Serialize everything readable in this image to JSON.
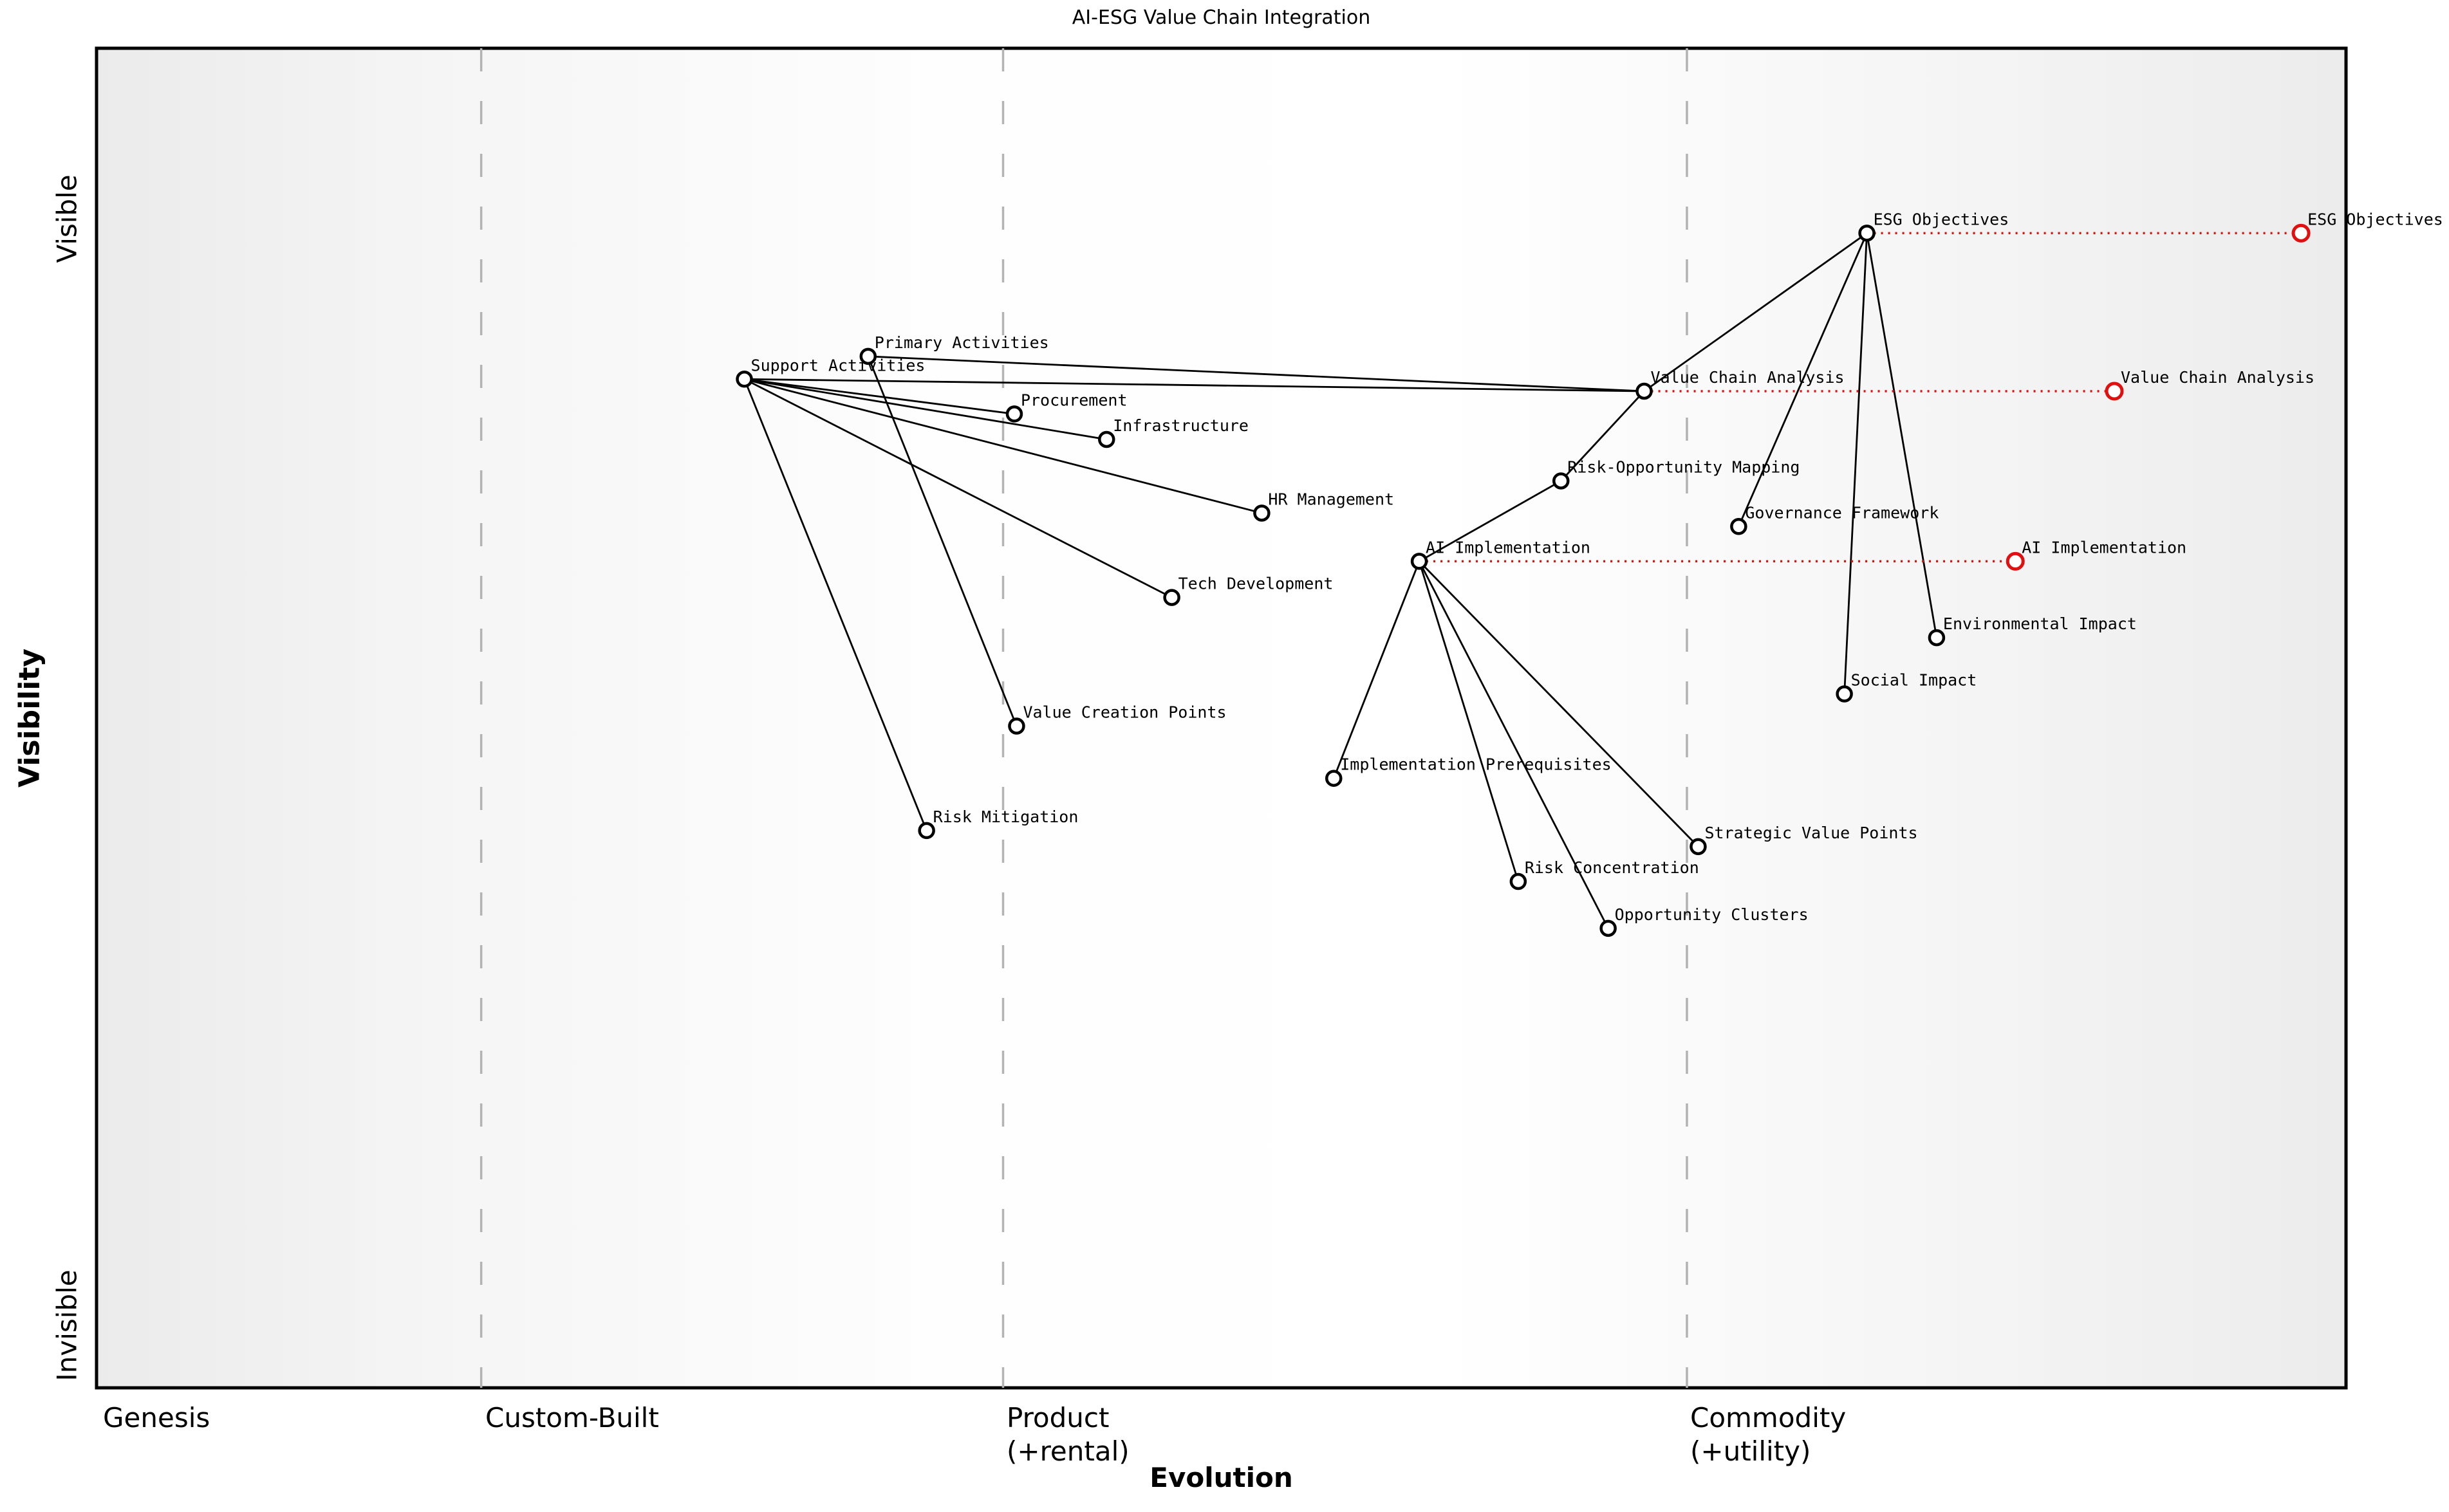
{
  "title": "AI-ESG Value Chain Integration",
  "chart_data": {
    "type": "wardley_map",
    "title": "AI-ESG Value Chain Integration",
    "x_axis": {
      "label": "Evolution",
      "sections": [
        "Genesis",
        "Custom-Built",
        "Product\n(+rental)",
        "Commodity\n(+utility)"
      ],
      "boundaries": [
        0.171,
        0.403,
        0.707
      ],
      "range": [
        0,
        1
      ]
    },
    "y_axis": {
      "label": "Visibility",
      "top": "Visible",
      "bottom": "Invisible",
      "range": [
        0,
        1
      ]
    },
    "grid": "dashed-stage-dividers",
    "colors": {
      "node": "#000000",
      "node_fill": "#ffffff",
      "evolved": "#e01010",
      "edge": "#000000",
      "divider": "#b3b3b3",
      "label": "#000000"
    },
    "nodes": [
      {
        "id": "esg-objectives",
        "label": "ESG Objectives",
        "x": 0.787,
        "y": 0.138
      },
      {
        "id": "value-chain-analysis",
        "label": "Value Chain Analysis",
        "x": 0.688,
        "y": 0.256
      },
      {
        "id": "primary-activities",
        "label": "Primary Activities",
        "x": 0.343,
        "y": 0.23
      },
      {
        "id": "support-activities",
        "label": "Support Activities",
        "x": 0.288,
        "y": 0.247
      },
      {
        "id": "procurement",
        "label": "Procurement",
        "x": 0.408,
        "y": 0.273
      },
      {
        "id": "infrastructure",
        "label": "Infrastructure",
        "x": 0.449,
        "y": 0.292
      },
      {
        "id": "risk-opportunity-mapping",
        "label": "Risk-Opportunity Mapping",
        "x": 0.651,
        "y": 0.323
      },
      {
        "id": "governance-framework",
        "label": "Governance Framework",
        "x": 0.73,
        "y": 0.357
      },
      {
        "id": "hr-management",
        "label": "HR Management",
        "x": 0.518,
        "y": 0.347
      },
      {
        "id": "ai-implementation",
        "label": "AI Implementation",
        "x": 0.588,
        "y": 0.383
      },
      {
        "id": "tech-development",
        "label": "Tech Development",
        "x": 0.478,
        "y": 0.41
      },
      {
        "id": "environmental-impact",
        "label": "Environmental Impact",
        "x": 0.818,
        "y": 0.44
      },
      {
        "id": "social-impact",
        "label": "Social Impact",
        "x": 0.777,
        "y": 0.482
      },
      {
        "id": "value-creation-points",
        "label": "Value Creation Points",
        "x": 0.409,
        "y": 0.506
      },
      {
        "id": "implementation-prerequisites",
        "label": "Implementation Prerequisites",
        "x": 0.55,
        "y": 0.545
      },
      {
        "id": "risk-mitigation",
        "label": "Risk Mitigation",
        "x": 0.369,
        "y": 0.584
      },
      {
        "id": "strategic-value-points",
        "label": "Strategic Value Points",
        "x": 0.712,
        "y": 0.596
      },
      {
        "id": "risk-concentration",
        "label": "Risk Concentration",
        "x": 0.632,
        "y": 0.622
      },
      {
        "id": "opportunity-clusters",
        "label": "Opportunity Clusters",
        "x": 0.672,
        "y": 0.657
      }
    ],
    "evolved_nodes": [
      {
        "id": "esg-objectives-evolved",
        "from": "esg-objectives",
        "label": "ESG Objectives",
        "x": 0.98,
        "y": 0.138
      },
      {
        "id": "value-chain-analysis-evolved",
        "from": "value-chain-analysis",
        "label": "Value Chain Analysis",
        "x": 0.897,
        "y": 0.256
      },
      {
        "id": "ai-implementation-evolved",
        "from": "ai-implementation",
        "label": "AI Implementation",
        "x": 0.853,
        "y": 0.383
      }
    ],
    "edges": [
      [
        "esg-objectives",
        "value-chain-analysis"
      ],
      [
        "esg-objectives",
        "governance-framework"
      ],
      [
        "esg-objectives",
        "environmental-impact"
      ],
      [
        "esg-objectives",
        "social-impact"
      ],
      [
        "primary-activities",
        "value-chain-analysis"
      ],
      [
        "primary-activities",
        "value-creation-points"
      ],
      [
        "support-activities",
        "value-chain-analysis"
      ],
      [
        "support-activities",
        "procurement"
      ],
      [
        "support-activities",
        "infrastructure"
      ],
      [
        "support-activities",
        "hr-management"
      ],
      [
        "support-activities",
        "tech-development"
      ],
      [
        "support-activities",
        "risk-mitigation"
      ],
      [
        "value-chain-analysis",
        "risk-opportunity-mapping"
      ],
      [
        "risk-opportunity-mapping",
        "ai-implementation"
      ],
      [
        "ai-implementation",
        "implementation-prerequisites"
      ],
      [
        "ai-implementation",
        "strategic-value-points"
      ],
      [
        "ai-implementation",
        "risk-concentration"
      ],
      [
        "ai-implementation",
        "opportunity-clusters"
      ]
    ]
  }
}
